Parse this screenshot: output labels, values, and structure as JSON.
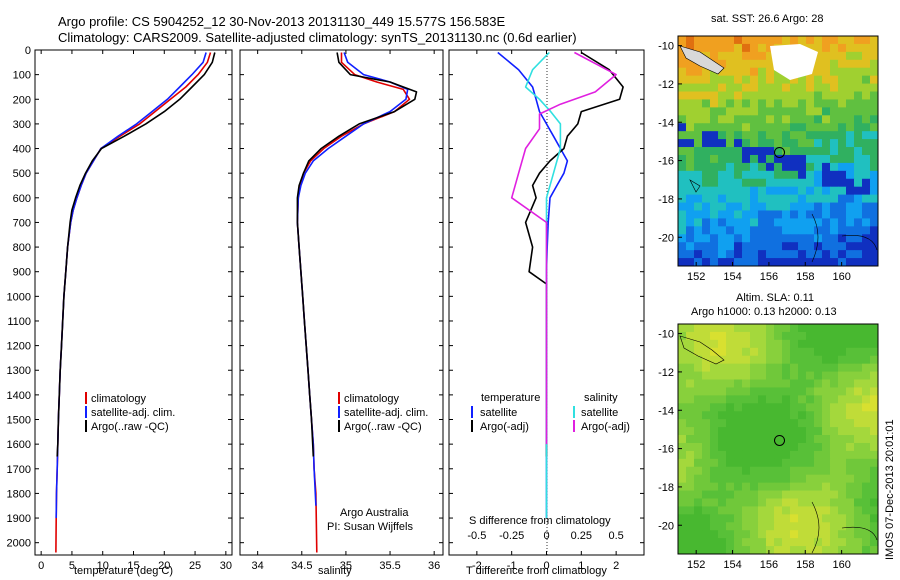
{
  "header": {
    "line1": "Argo profile: CS 5904252_12 30-Nov-2013 20131130_449 15.577S 156.583E",
    "line2": "Climatology: CARS2009. Satellite-adjusted climatology: synTS_20131130.nc (0.6d earlier)"
  },
  "colors": {
    "climatology": "#e00000",
    "satellite": "#1020ff",
    "argo": "#000000",
    "sal_satellite": "#30e0e0",
    "sal_argo": "#e020e0"
  },
  "chart_data": [
    {
      "type": "line",
      "xlabel": "temperature (deg C)",
      "ylabel": "",
      "xlim": [
        -1,
        31
      ],
      "ylim": [
        2050,
        0
      ],
      "xticks": [
        "0",
        "5",
        "10",
        "15",
        "20",
        "25",
        "30"
      ],
      "yticks": [
        "0",
        "100",
        "200",
        "300",
        "400",
        "500",
        "600",
        "700",
        "800",
        "900",
        "1000",
        "1100",
        "1200",
        "1300",
        "1400",
        "1500",
        "1600",
        "1700",
        "1800",
        "1900",
        "2000"
      ],
      "legend": [
        "climatology",
        "satellite-adj. clim.",
        "Argo(..raw -QC)"
      ],
      "series": [
        {
          "name": "climatology",
          "color": "#e00000",
          "x": [
            27.5,
            27,
            25.5,
            23.5,
            21,
            18.5,
            16,
            12.8,
            9.7,
            8.5,
            7.3,
            6.5,
            5.8,
            5.2,
            4.8,
            4.3,
            4.0,
            3.7,
            3.5,
            3.3,
            3.1,
            2.95,
            2.8,
            2.7,
            2.6,
            2.5,
            2.45,
            2.4
          ],
          "y": [
            10,
            50,
            100,
            150,
            200,
            250,
            300,
            350,
            400,
            450,
            500,
            550,
            600,
            650,
            700,
            800,
            900,
            1000,
            1100,
            1200,
            1300,
            1400,
            1500,
            1600,
            1700,
            1800,
            1900,
            2040
          ]
        },
        {
          "name": "satellite-adj. clim.",
          "color": "#1020ff",
          "x": [
            26.8,
            26.3,
            24.5,
            22.5,
            20.5,
            18,
            15.5,
            12.5,
            9.7,
            8.5,
            7.3,
            6.5,
            5.8,
            5.2,
            4.8,
            4.3,
            4.0,
            3.7,
            3.5,
            3.3,
            3.1,
            2.95,
            2.8,
            2.7,
            2.6,
            2.5,
            2.45
          ],
          "y": [
            10,
            50,
            100,
            150,
            200,
            250,
            300,
            350,
            400,
            450,
            500,
            550,
            600,
            650,
            700,
            800,
            900,
            1000,
            1100,
            1200,
            1300,
            1400,
            1500,
            1600,
            1700,
            1800,
            1900
          ]
        },
        {
          "name": "Argo(..raw -QC)",
          "color": "#000000",
          "x": [
            28.2,
            27.8,
            26.5,
            24.5,
            22.5,
            20,
            17,
            13.5,
            9.8,
            8.3,
            7.2,
            6.3,
            5.6,
            5.0,
            4.7,
            4.3,
            4.0,
            3.7,
            3.5,
            3.3,
            3.1,
            2.95,
            2.8,
            2.7,
            2.6
          ],
          "y": [
            10,
            50,
            100,
            150,
            200,
            250,
            300,
            350,
            400,
            450,
            500,
            550,
            600,
            650,
            700,
            800,
            900,
            1000,
            1100,
            1200,
            1300,
            1400,
            1500,
            1600,
            1650
          ]
        }
      ]
    },
    {
      "type": "line",
      "xlabel": "salinity",
      "ylabel": "",
      "xlim": [
        33.8,
        36.1
      ],
      "ylim": [
        2050,
        0
      ],
      "xticks": [
        "34",
        "34.5",
        "35",
        "35.5",
        "36"
      ],
      "legend": [
        "climatology",
        "satellite-adj. clim.",
        "Argo(..raw -QC)"
      ],
      "annotations": [
        "Argo Australia",
        "PI: Susan Wijffels"
      ],
      "series": [
        {
          "name": "climatology",
          "color": "#e00000",
          "x": [
            34.95,
            34.95,
            35.1,
            35.35,
            35.65,
            35.72,
            35.55,
            35.2,
            34.95,
            34.75,
            34.6,
            34.52,
            34.48,
            34.46,
            34.45,
            34.47,
            34.49,
            34.51,
            34.53,
            34.55,
            34.57,
            34.59,
            34.61,
            34.63,
            34.64,
            34.66,
            34.67
          ],
          "y": [
            10,
            50,
            100,
            130,
            160,
            200,
            250,
            300,
            350,
            400,
            450,
            500,
            550,
            600,
            700,
            800,
            900,
            1000,
            1100,
            1200,
            1300,
            1400,
            1500,
            1600,
            1700,
            1800,
            2040
          ]
        },
        {
          "name": "satellite-adj. clim.",
          "color": "#1020ff",
          "x": [
            34.98,
            35.02,
            35.2,
            35.5,
            35.7,
            35.68,
            35.5,
            35.2,
            35.0,
            34.8,
            34.63,
            34.54,
            34.49,
            34.46,
            34.45,
            34.47,
            34.49,
            34.51,
            34.53,
            34.55,
            34.57,
            34.59,
            34.61,
            34.63,
            34.64,
            34.66
          ],
          "y": [
            10,
            50,
            100,
            130,
            160,
            200,
            250,
            300,
            350,
            400,
            450,
            500,
            550,
            600,
            700,
            800,
            900,
            1000,
            1100,
            1200,
            1300,
            1400,
            1500,
            1600,
            1700,
            1850
          ]
        },
        {
          "name": "Argo(..raw -QC)",
          "color": "#000000",
          "x": [
            34.9,
            34.92,
            35.05,
            35.5,
            35.8,
            35.78,
            35.55,
            35.15,
            34.92,
            34.72,
            34.58,
            34.52,
            34.47,
            34.45,
            34.45,
            34.47,
            34.49,
            34.51,
            34.53,
            34.55,
            34.57,
            34.59,
            34.61,
            34.63
          ],
          "y": [
            10,
            50,
            100,
            130,
            170,
            200,
            250,
            300,
            350,
            400,
            450,
            500,
            550,
            600,
            700,
            800,
            900,
            1000,
            1100,
            1200,
            1300,
            1400,
            1500,
            1650
          ]
        }
      ]
    },
    {
      "type": "line",
      "xlabel": "T difference from climatology",
      "xlabel_top": "S difference from climatology",
      "ylabel": "",
      "xlim": [
        -2.8,
        2.8
      ],
      "ylim": [
        2050,
        0
      ],
      "xticks": [
        "-2",
        "-1",
        "0",
        "1",
        "2"
      ],
      "xticks_top": [
        "-0.5",
        "-0.25",
        "0",
        "0.25",
        "0.5"
      ],
      "legend_groups": [
        {
          "title": "temperature",
          "items": [
            "satellite",
            "Argo(-adj)"
          ]
        },
        {
          "title": "salinity",
          "items": [
            "satellite",
            "Argo(-adj)"
          ]
        }
      ],
      "series": [
        {
          "name": "temperature satellite",
          "color": "#1020ff",
          "x": [
            -1.4,
            -0.8,
            -0.4,
            -0.3,
            -0.2,
            0.0,
            0.2,
            0.4,
            0.6,
            0.5,
            0.3,
            0.1,
            0.05,
            0.02,
            0.0,
            0.0,
            0.0,
            0.0,
            0.0
          ],
          "y": [
            10,
            80,
            150,
            200,
            250,
            300,
            350,
            400,
            450,
            500,
            550,
            600,
            700,
            800,
            900,
            1100,
            1300,
            1600,
            1900
          ]
        },
        {
          "name": "temperature Argo(-adj)",
          "color": "#000000",
          "x": [
            1.0,
            1.8,
            2.2,
            2.1,
            1.0,
            0.9,
            0.6,
            0.5,
            0.1,
            -0.2,
            -0.4,
            -0.3,
            -0.6,
            -0.4,
            -0.5,
            0.0,
            0.0,
            0.0,
            0.0
          ],
          "y": [
            10,
            80,
            150,
            200,
            250,
            300,
            350,
            400,
            450,
            500,
            550,
            600,
            700,
            800,
            900,
            950,
            1100,
            1300,
            1650
          ]
        },
        {
          "name": "salinity satellite",
          "color": "#30e0e0",
          "x": [
            0.02,
            -0.1,
            -0.15,
            -0.05,
            0.03,
            0.1,
            0.1,
            0.1,
            0.05,
            0.0,
            0.0,
            0.0,
            0.0,
            0.0
          ],
          "y": [
            10,
            80,
            150,
            200,
            250,
            300,
            350,
            400,
            500,
            600,
            800,
            1000,
            1500,
            1900
          ]
        },
        {
          "name": "salinity Argo(-adj)",
          "color": "#e020e0",
          "x": [
            0.2,
            0.5,
            0.35,
            0.1,
            -0.05,
            -0.05,
            -0.15,
            -0.2,
            -0.25,
            0.0,
            0.0,
            0.0
          ],
          "y": [
            10,
            100,
            170,
            220,
            260,
            320,
            400,
            500,
            600,
            700,
            1000,
            1600
          ]
        }
      ]
    },
    {
      "type": "heatmap",
      "title": "sat. SST: 26.6  Argo: 28",
      "xticks": [
        "152",
        "154",
        "156",
        "158",
        "160"
      ],
      "yticks": [
        "-10",
        "-12",
        "-14",
        "-16",
        "-18",
        "-20"
      ],
      "xlim": [
        151,
        162
      ],
      "ylim": [
        -21.5,
        -9.5
      ],
      "argo_position": {
        "lon": 156.583,
        "lat": -15.577
      }
    },
    {
      "type": "heatmap",
      "title": "Altim. SLA: 0.11",
      "subtitle": "Argo h1000: 0.13  h2000: 0.13",
      "xticks": [
        "152",
        "154",
        "156",
        "158",
        "160"
      ],
      "yticks": [
        "-10",
        "-12",
        "-14",
        "-16",
        "-18",
        "-20"
      ],
      "xlim": [
        151,
        162
      ],
      "ylim": [
        -21.5,
        -9.5
      ],
      "argo_position": {
        "lon": 156.583,
        "lat": -15.577
      }
    }
  ],
  "footer": {
    "stamp": "IMOS 07-Dec-2013 20:01:01"
  }
}
